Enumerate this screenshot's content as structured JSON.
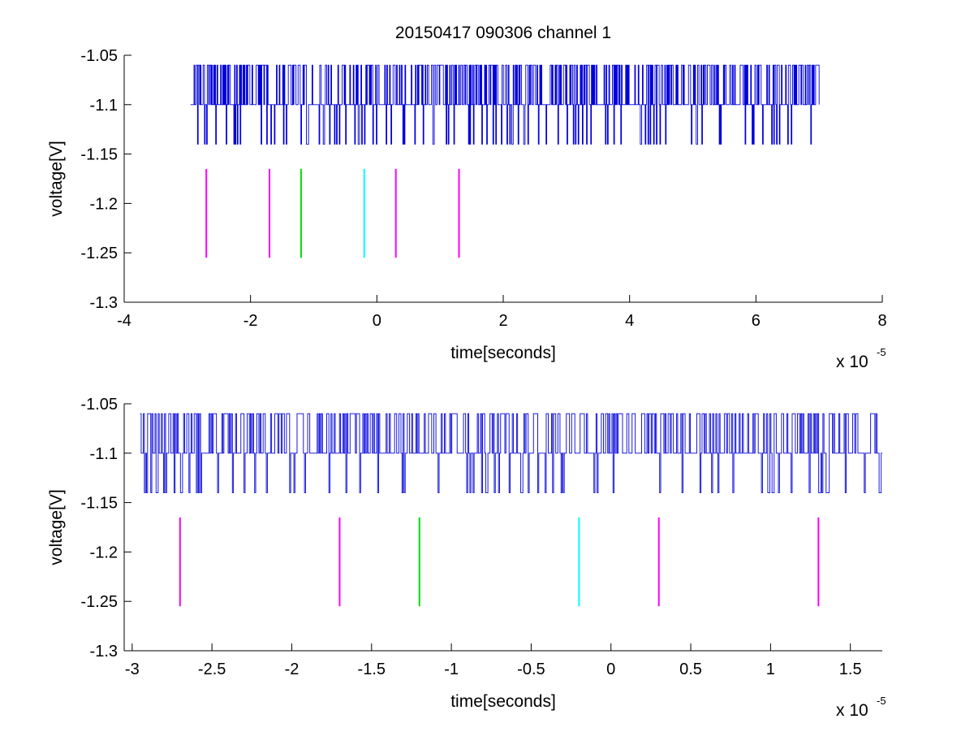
{
  "figure": {
    "title": "20150417 090306 channel 1"
  },
  "chart_data": [
    {
      "type": "line",
      "title": "20150417 090306 channel 1",
      "xlabel": "time[seconds]",
      "ylabel": "voltage[V]",
      "x_exponent_base": "x 10",
      "x_exponent_power": "-5",
      "xlim": [
        -4e-05,
        8e-05
      ],
      "ylim": [
        -1.3,
        -1.05
      ],
      "x_ticks": [
        -4e-05,
        -2e-05,
        0,
        2e-05,
        4e-05,
        6e-05,
        8e-05
      ],
      "x_tick_labels": [
        "-4",
        "-2",
        "0",
        "2",
        "4",
        "6",
        "8"
      ],
      "y_ticks": [
        -1.05,
        -1.1,
        -1.15,
        -1.2,
        -1.25,
        -1.3
      ],
      "y_tick_labels": [
        "-1.05",
        "-1.1",
        "-1.15",
        "-1.2",
        "-1.25",
        "-1.3"
      ],
      "grid": false,
      "signal": {
        "color": "#0000dd",
        "x_start": -2.95e-05,
        "x_end": 7e-05,
        "levels": [
          -1.06,
          -1.1,
          -1.14
        ],
        "baseline": -1.1
      },
      "markers": [
        {
          "x": -2.7e-05,
          "y_bottom": -1.255,
          "y_top": -1.165,
          "color": "#ff00ff"
        },
        {
          "x": -1.7e-05,
          "y_bottom": -1.255,
          "y_top": -1.165,
          "color": "#ff00ff"
        },
        {
          "x": -1.2e-05,
          "y_bottom": -1.255,
          "y_top": -1.165,
          "color": "#00dd00"
        },
        {
          "x": -2e-06,
          "y_bottom": -1.255,
          "y_top": -1.165,
          "color": "#00ffff"
        },
        {
          "x": 3e-06,
          "y_bottom": -1.255,
          "y_top": -1.165,
          "color": "#ff00ff"
        },
        {
          "x": 1.3e-05,
          "y_bottom": -1.255,
          "y_top": -1.165,
          "color": "#ff00ff"
        }
      ]
    },
    {
      "type": "line",
      "title": "",
      "xlabel": "time[seconds]",
      "ylabel": "voltage[V]",
      "x_exponent_base": "x 10",
      "x_exponent_power": "-5",
      "xlim": [
        -3.05e-05,
        1.7e-05
      ],
      "ylim": [
        -1.3,
        -1.05
      ],
      "x_ticks": [
        -3e-05,
        -2.5e-05,
        -2e-05,
        -1.5e-05,
        -1e-05,
        -5e-06,
        0,
        5e-06,
        1e-05,
        1.5e-05
      ],
      "x_tick_labels": [
        "-3",
        "-2.5",
        "-2",
        "-1.5",
        "-1",
        "-0.5",
        "0",
        "0.5",
        "1",
        "1.5"
      ],
      "y_ticks": [
        -1.05,
        -1.1,
        -1.15,
        -1.2,
        -1.25,
        -1.3
      ],
      "y_tick_labels": [
        "-1.05",
        "-1.1",
        "-1.15",
        "-1.2",
        "-1.25",
        "-1.3"
      ],
      "grid": false,
      "signal": {
        "color": "#0000dd",
        "x_start": -2.95e-05,
        "x_end": 1.7e-05,
        "levels": [
          -1.06,
          -1.1,
          -1.14
        ],
        "baseline": -1.1
      },
      "markers": [
        {
          "x": -2.7e-05,
          "y_bottom": -1.255,
          "y_top": -1.165,
          "color": "#ff00ff"
        },
        {
          "x": -1.7e-05,
          "y_bottom": -1.255,
          "y_top": -1.165,
          "color": "#ff00ff"
        },
        {
          "x": -1.2e-05,
          "y_bottom": -1.255,
          "y_top": -1.165,
          "color": "#00dd00"
        },
        {
          "x": -2e-06,
          "y_bottom": -1.255,
          "y_top": -1.165,
          "color": "#00ffff"
        },
        {
          "x": 3e-06,
          "y_bottom": -1.255,
          "y_top": -1.165,
          "color": "#ff00ff"
        },
        {
          "x": 1.3e-05,
          "y_bottom": -1.255,
          "y_top": -1.165,
          "color": "#ff00ff"
        }
      ]
    }
  ]
}
